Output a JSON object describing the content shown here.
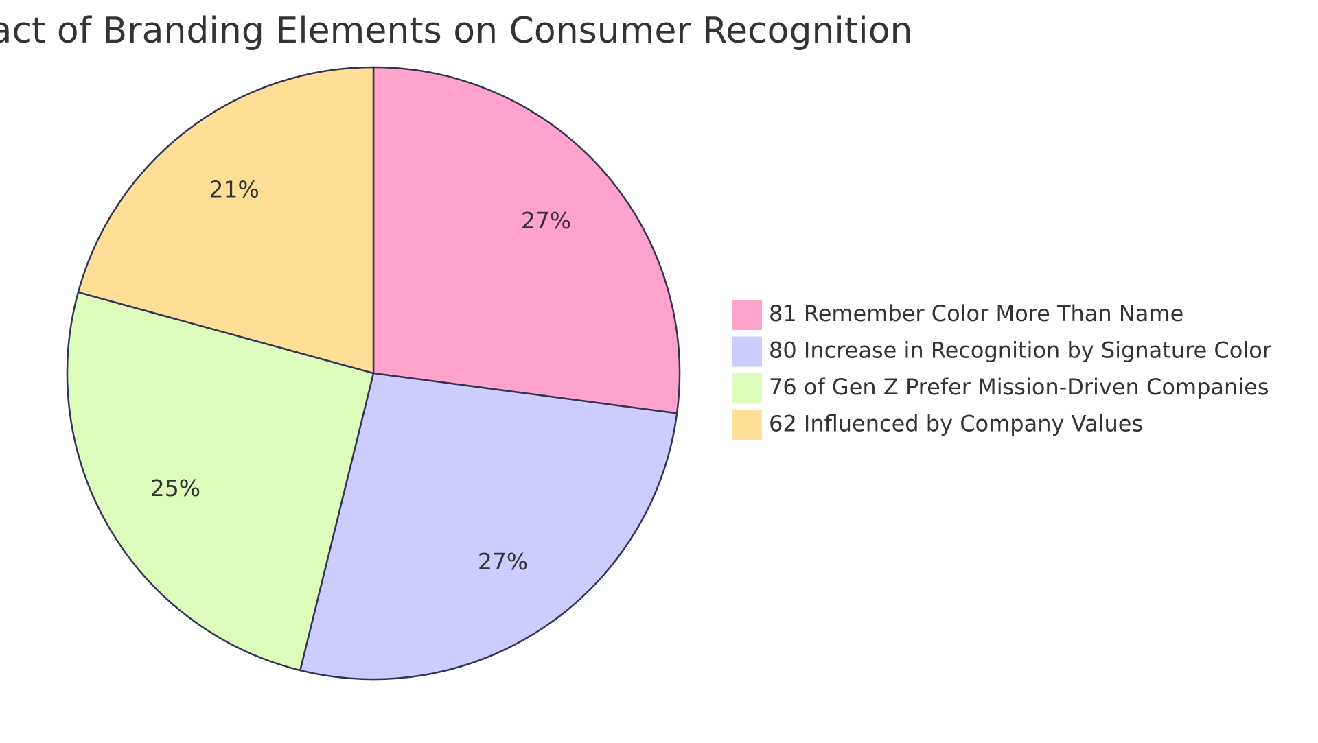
{
  "chart_data": {
    "type": "pie",
    "title": "Impact of Branding Elements on Consumer Recognition",
    "slices": [
      {
        "label": "81 Remember Color More Than Name",
        "value": 81,
        "percent_label": "27%",
        "color": "#FFA3CC"
      },
      {
        "label": "80 Increase in Recognition by Signature Color",
        "value": 80,
        "percent_label": "27%",
        "color": "#CCCCFF"
      },
      {
        "label": "76 of Gen Z Prefer Mission-Driven Companies",
        "value": 76,
        "percent_label": "25%",
        "color": "#DDFBBB"
      },
      {
        "label": "62 Influenced by Company Values",
        "value": 62,
        "percent_label": "21%",
        "color": "#FFDE95"
      }
    ],
    "legend_position": "right",
    "start_angle": "12 o'clock, clockwise"
  }
}
